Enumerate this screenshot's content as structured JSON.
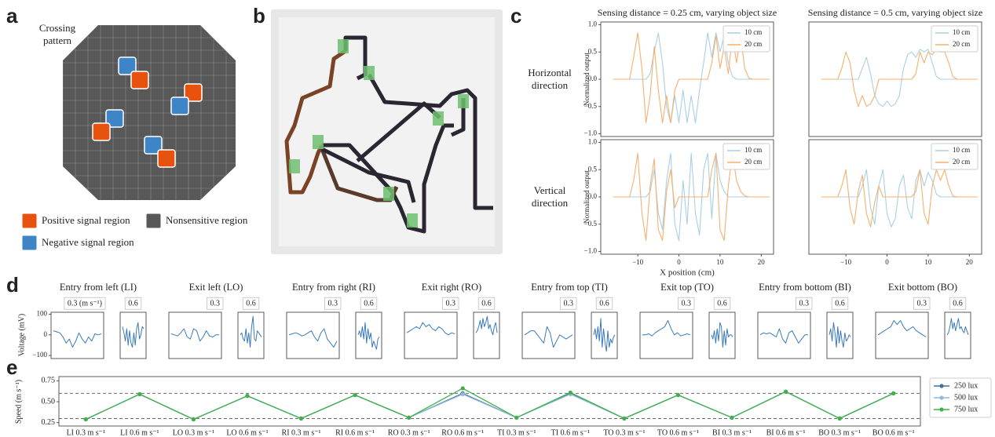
{
  "panel_labels": [
    "a",
    "b",
    "c",
    "d",
    "e"
  ],
  "panel_a": {
    "title": "Crossing pattern",
    "legend": [
      {
        "label": "Positive signal region",
        "color": "#e8520f"
      },
      {
        "label": "Nonsensitive region",
        "color": "#585858"
      },
      {
        "label": "Negative signal region",
        "color": "#3d85c6"
      }
    ]
  },
  "chart_data": [
    {
      "type": "line",
      "title": "Sensing distance = 0.25 cm, varying object size",
      "row_label": "Horizontal direction",
      "ylabel": "Normalized output",
      "x": [
        -16,
        -15,
        -14,
        -13,
        -12,
        -11,
        -10,
        -9,
        -8,
        -7,
        -6,
        -5,
        -4,
        -3,
        -2,
        -1,
        0,
        1,
        2,
        3,
        4,
        5,
        6,
        7,
        8,
        9,
        10,
        11,
        12,
        13,
        14,
        15,
        16,
        17,
        18,
        19,
        20,
        21,
        22
      ],
      "xlim": [
        -19,
        23
      ],
      "ylim": [
        -1.05,
        1.05
      ],
      "yticks": [
        {
          "value": -1,
          "label": "−1.0"
        },
        {
          "value": -0.5,
          "label": "−0.5"
        },
        {
          "value": 0,
          "label": "0.0"
        },
        {
          "value": 0.5,
          "label": "0.5"
        },
        {
          "value": 1,
          "label": "1.0"
        }
      ],
      "legend": "upper right",
      "series": [
        {
          "name": "10 cm",
          "color": "#a9cfe4",
          "values": [
            0,
            0,
            0,
            0,
            0,
            0,
            0,
            0,
            0,
            0.1,
            0.5,
            0.85,
            0.3,
            -0.5,
            -0.8,
            -0.3,
            -0.8,
            -0.2,
            -0.8,
            -0.3,
            -0.8,
            -0.2,
            0.3,
            0.85,
            0.4,
            0.85,
            0.5,
            0.8,
            0.3,
            0.05,
            0,
            0,
            0,
            0,
            0,
            0,
            0,
            0,
            0
          ]
        },
        {
          "name": "20 cm",
          "color": "#f5b06e",
          "values": [
            0,
            0,
            0,
            0,
            0,
            0.4,
            0.85,
            0.2,
            -0.8,
            -0.3,
            0.6,
            -0.2,
            -0.8,
            -0.3,
            -0.8,
            -0.2,
            0,
            0,
            0,
            0,
            0,
            0,
            0,
            0,
            0.3,
            0.8,
            0.2,
            0.6,
            0.1,
            0.8,
            0.3,
            0.8,
            0.2,
            0.02,
            0,
            0,
            0,
            0,
            0
          ]
        }
      ]
    },
    {
      "type": "line",
      "title": "Sensing distance = 0.5 cm, varying object size",
      "x": [
        -16,
        -15,
        -14,
        -13,
        -12,
        -11,
        -10,
        -9,
        -8,
        -7,
        -6,
        -5,
        -4,
        -3,
        -2,
        -1,
        0,
        1,
        2,
        3,
        4,
        5,
        6,
        7,
        8,
        9,
        10,
        11,
        12,
        13,
        14,
        15,
        16,
        17,
        18,
        19,
        20,
        21,
        22
      ],
      "xlim": [
        -19,
        23
      ],
      "ylim": [
        -1.05,
        1.05
      ],
      "legend": "upper right",
      "series": [
        {
          "name": "10 cm",
          "color": "#a9cfe4",
          "values": [
            0,
            0,
            0,
            0,
            0,
            0,
            0,
            0,
            0,
            0,
            0.2,
            0.4,
            0.1,
            -0.3,
            -0.45,
            -0.5,
            -0.4,
            -0.5,
            -0.45,
            -0.3,
            0.2,
            0.45,
            0.5,
            0.4,
            0.55,
            0.5,
            0.55,
            0.3,
            0.05,
            0,
            0,
            0,
            0,
            0,
            0,
            0,
            0,
            0,
            0
          ]
        },
        {
          "name": "20 cm",
          "color": "#f5b06e",
          "values": [
            0,
            0,
            0,
            0,
            0,
            0.2,
            0.5,
            0.3,
            -0.2,
            -0.5,
            -0.3,
            -0.5,
            -0.45,
            -0.3,
            0,
            0,
            0,
            0,
            0,
            0,
            0,
            0,
            0,
            0.1,
            0.5,
            0.3,
            0.5,
            0.45,
            0.55,
            0.5,
            0.5,
            0.3,
            0.05,
            0,
            0,
            0,
            0,
            0,
            0
          ]
        }
      ]
    },
    {
      "type": "line",
      "row_label": "Vertical direction",
      "ylabel": "Normalized output",
      "xlabel": "X position (cm)",
      "x": [
        -16,
        -15,
        -14,
        -13,
        -12,
        -11,
        -10,
        -9,
        -8,
        -7,
        -6,
        -5,
        -4,
        -3,
        -2,
        -1,
        0,
        1,
        2,
        3,
        4,
        5,
        6,
        7,
        8,
        9,
        10,
        11,
        12,
        13,
        14,
        15,
        16,
        17,
        18,
        19,
        20,
        21,
        22
      ],
      "xlim": [
        -19,
        23
      ],
      "ylim": [
        -1.05,
        1.05
      ],
      "xticks": [
        {
          "value": -10,
          "label": "−10"
        },
        0,
        10,
        20
      ],
      "yticks": [
        {
          "value": -1,
          "label": "−1.0"
        },
        {
          "value": -0.5,
          "label": "−0.5"
        },
        {
          "value": 0,
          "label": "0.0"
        },
        {
          "value": 0.5,
          "label": "0.5"
        },
        {
          "value": 1,
          "label": "1.0"
        }
      ],
      "legend": "upper right",
      "series": [
        {
          "name": "10 cm",
          "color": "#a9cfe4",
          "values": [
            0,
            0,
            0,
            0,
            0,
            0,
            0,
            0,
            0,
            0.1,
            0.5,
            -0.3,
            -0.6,
            0.3,
            0.8,
            -0.5,
            -0.8,
            0.3,
            -0.5,
            0.8,
            -0.3,
            -0.7,
            0.5,
            0.8,
            -0.4,
            0.8,
            0.3,
            0.1,
            0,
            0,
            0,
            0,
            0,
            0,
            0,
            0,
            0,
            0,
            0
          ]
        },
        {
          "name": "20 cm",
          "color": "#f5b06e",
          "values": [
            0,
            0,
            0,
            0,
            0,
            0.3,
            0.8,
            -0.3,
            -0.8,
            0.2,
            0.7,
            -0.6,
            -0.8,
            0.1,
            0.5,
            -0.2,
            0,
            0,
            0,
            0,
            0,
            0,
            0,
            0,
            0.5,
            0.8,
            -0.6,
            -0.8,
            0.2,
            0.8,
            0.3,
            0.1,
            0.02,
            0,
            0,
            0,
            0,
            0,
            0
          ]
        }
      ]
    },
    {
      "type": "line",
      "x": [
        -16,
        -15,
        -14,
        -13,
        -12,
        -11,
        -10,
        -9,
        -8,
        -7,
        -6,
        -5,
        -4,
        -3,
        -2,
        -1,
        0,
        1,
        2,
        3,
        4,
        5,
        6,
        7,
        8,
        9,
        10,
        11,
        12,
        13,
        14,
        15,
        16,
        17,
        18,
        19,
        20,
        21,
        22
      ],
      "xlim": [
        -19,
        23
      ],
      "ylim": [
        -1.05,
        1.05
      ],
      "xticks": [
        {
          "value": -10,
          "label": "−10"
        },
        0,
        10,
        20
      ],
      "legend": "upper right",
      "series": [
        {
          "name": "10 cm",
          "color": "#a9cfe4",
          "values": [
            0,
            0,
            0,
            0,
            0,
            0,
            0,
            0,
            0,
            0,
            0.2,
            0.5,
            -0.2,
            -0.5,
            0.2,
            0.5,
            -0.3,
            -0.55,
            -0.4,
            0.2,
            0.4,
            -0.2,
            -0.4,
            0.3,
            0.5,
            0.2,
            0.45,
            0.3,
            0.05,
            0,
            0,
            0,
            0,
            0,
            0,
            0,
            0,
            0,
            0
          ]
        },
        {
          "name": "20 cm",
          "color": "#f5b06e",
          "values": [
            0,
            0,
            0,
            0,
            0,
            0.2,
            0.5,
            -0.2,
            -0.5,
            0.1,
            0.4,
            -0.3,
            -0.55,
            -0.1,
            0.2,
            0,
            0,
            0,
            0,
            0,
            0,
            0,
            0,
            0.1,
            0.5,
            -0.3,
            -0.5,
            0.2,
            0.5,
            0.3,
            0.5,
            0.2,
            0.02,
            0,
            0,
            0,
            0,
            0,
            0
          ]
        }
      ]
    },
    {
      "type": "line",
      "title": "Entry from left (LI)",
      "label": "0.3 (m s⁻¹)",
      "ylabel": "Voltage (mV)",
      "ylim": [
        -115,
        110
      ],
      "yticks": [
        100,
        0,
        {
          "value": -100,
          "label": "−100"
        }
      ],
      "color": "#3a7ab8",
      "values": [
        20,
        15,
        10,
        -10,
        -40,
        -20,
        -60,
        -30,
        10,
        -20,
        -40,
        -10,
        -30,
        5,
        0,
        5
      ]
    },
    {
      "type": "line",
      "label": "0.6",
      "ylim": [
        -115,
        110
      ],
      "color": "#3a7ab8",
      "values": [
        40,
        10,
        -30,
        30,
        -50,
        20,
        -40,
        -60,
        10,
        -50,
        30,
        60,
        -20,
        0,
        40,
        30
      ]
    },
    {
      "type": "line",
      "title": "Exit left (LO)",
      "label": "0.3",
      "ylim": [
        -115,
        110
      ],
      "color": "#3a7ab8",
      "values": [
        5,
        0,
        -5,
        10,
        30,
        -10,
        -20,
        30,
        20,
        -30,
        -10,
        20,
        -5,
        -10,
        0,
        0
      ]
    },
    {
      "type": "line",
      "label": "0.6",
      "ylim": [
        -115,
        110
      ],
      "color": "#3a7ab8",
      "values": [
        0,
        10,
        -20,
        -30,
        30,
        -40,
        10,
        -60,
        40,
        90,
        -20,
        -30,
        20,
        10,
        0,
        -10
      ]
    },
    {
      "type": "line",
      "title": "Entry from right (RI)",
      "label": "0.3",
      "ylim": [
        -115,
        110
      ],
      "color": "#3a7ab8",
      "values": [
        0,
        5,
        10,
        5,
        -5,
        0,
        10,
        20,
        -10,
        -30,
        10,
        30,
        -20,
        -40,
        -60,
        -30
      ]
    },
    {
      "type": "line",
      "label": "0.6",
      "ylim": [
        -115,
        110
      ],
      "color": "#3a7ab8",
      "values": [
        0,
        20,
        -10,
        40,
        -20,
        60,
        -40,
        30,
        -20,
        10,
        -60,
        -30,
        -50,
        -70,
        -20,
        -10
      ]
    },
    {
      "type": "line",
      "title": "Exit right (RO)",
      "label": "0.3",
      "ylim": [
        -115,
        110
      ],
      "color": "#3a7ab8",
      "values": [
        10,
        20,
        30,
        40,
        30,
        60,
        40,
        50,
        30,
        20,
        40,
        30,
        10,
        0,
        10,
        5
      ]
    },
    {
      "type": "line",
      "label": "0.6",
      "ylim": [
        -115,
        110
      ],
      "color": "#3a7ab8",
      "values": [
        10,
        20,
        40,
        70,
        30,
        80,
        40,
        60,
        90,
        30,
        50,
        20,
        0,
        40,
        60,
        10
      ]
    },
    {
      "type": "line",
      "title": "Entry from top (TI)",
      "label": "0.3",
      "ylim": [
        -115,
        110
      ],
      "color": "#3a7ab8",
      "values": [
        0,
        10,
        20,
        20,
        0,
        -20,
        -40,
        40,
        10,
        -60,
        -30,
        0,
        -10,
        -20,
        -10,
        0
      ]
    },
    {
      "type": "line",
      "label": "0.6",
      "ylim": [
        -115,
        110
      ],
      "color": "#3a7ab8",
      "values": [
        0,
        30,
        -20,
        40,
        -30,
        80,
        -60,
        30,
        -40,
        -80,
        20,
        -60,
        -20,
        -40,
        -10,
        0
      ]
    },
    {
      "type": "line",
      "title": "Exit top (TO)",
      "label": "0.3",
      "ylim": [
        -115,
        110
      ],
      "color": "#3a7ab8",
      "values": [
        0,
        0,
        5,
        -5,
        10,
        20,
        30,
        40,
        70,
        30,
        0,
        10,
        -5,
        0,
        5,
        0
      ]
    },
    {
      "type": "line",
      "label": "0.6",
      "ylim": [
        -115,
        110
      ],
      "color": "#3a7ab8",
      "values": [
        0,
        -20,
        20,
        -40,
        30,
        -30,
        60,
        40,
        -60,
        20,
        -50,
        30,
        -10,
        0,
        0,
        -10
      ]
    },
    {
      "type": "line",
      "title": "Entry from bottom (BI)",
      "label": "0.3",
      "ylim": [
        -115,
        110
      ],
      "color": "#3a7ab8",
      "values": [
        0,
        10,
        5,
        10,
        0,
        -10,
        30,
        -20,
        -40,
        10,
        20,
        -10,
        -40,
        -20,
        0,
        0
      ]
    },
    {
      "type": "line",
      "label": "0.6",
      "ylim": [
        -115,
        110
      ],
      "color": "#3a7ab8",
      "values": [
        0,
        30,
        -30,
        60,
        10,
        -60,
        40,
        -40,
        20,
        -30,
        -60,
        10,
        -30,
        -20,
        0,
        -10
      ]
    },
    {
      "type": "line",
      "title": "Exit bottom (BO)",
      "label": "0.3",
      "ylim": [
        -115,
        110
      ],
      "color": "#3a7ab8",
      "values": [
        0,
        10,
        20,
        30,
        40,
        70,
        50,
        70,
        40,
        20,
        30,
        40,
        20,
        10,
        0,
        -10
      ]
    },
    {
      "type": "line",
      "label": "0.6",
      "ylim": [
        -115,
        110
      ],
      "color": "#3a7ab8",
      "values": [
        0,
        10,
        40,
        80,
        30,
        60,
        20,
        50,
        80,
        30,
        40,
        20,
        10,
        40,
        20,
        0
      ]
    },
    {
      "type": "line",
      "ylabel": "Speed (m s⁻¹)",
      "categories": [
        "LI 0.3  m s⁻¹",
        "LI 0.6  m s⁻¹",
        "LO 0.3  m s⁻¹",
        "LO 0.6  m s⁻¹",
        "RI 0.3  m s⁻¹",
        "RI 0.6  m s⁻¹",
        "RO 0.3  m s⁻¹",
        "RO 0.6  m s⁻¹",
        "TI 0.3  m s⁻¹",
        "TI 0.6  m s⁻¹",
        "TO 0.3  m s⁻¹",
        "TO 0.6  m s⁻¹",
        "BI 0.3  m s⁻¹",
        "BI 0.6  m s⁻¹",
        "BO 0.3  m s⁻¹",
        "BO 0.6  m s⁻¹"
      ],
      "ylim": [
        0.21,
        0.8
      ],
      "yticks": [
        0.25,
        {
          "value": 0.5,
          "label": "0.50"
        },
        0.75
      ],
      "reference_lines": [
        0.3,
        0.6
      ],
      "legend": "right",
      "series": [
        {
          "name": "250 lux",
          "color": "#41729f",
          "values": [
            0.29,
            0.59,
            0.29,
            0.57,
            0.3,
            0.58,
            0.31,
            0.6,
            0.31,
            0.6,
            0.3,
            0.58,
            0.31,
            0.62,
            0.3,
            0.6
          ]
        },
        {
          "name": "500 lux",
          "color": "#92b8dc",
          "values": [
            0.29,
            0.59,
            0.29,
            0.57,
            0.3,
            0.58,
            0.31,
            0.59,
            0.31,
            0.59,
            0.3,
            0.58,
            0.31,
            0.62,
            0.3,
            0.6
          ]
        },
        {
          "name": "750 lux",
          "color": "#3fb04a",
          "values": [
            0.29,
            0.59,
            0.29,
            0.57,
            0.3,
            0.58,
            0.31,
            0.66,
            0.31,
            0.61,
            0.3,
            0.58,
            0.31,
            0.62,
            0.3,
            0.6
          ]
        }
      ]
    }
  ]
}
